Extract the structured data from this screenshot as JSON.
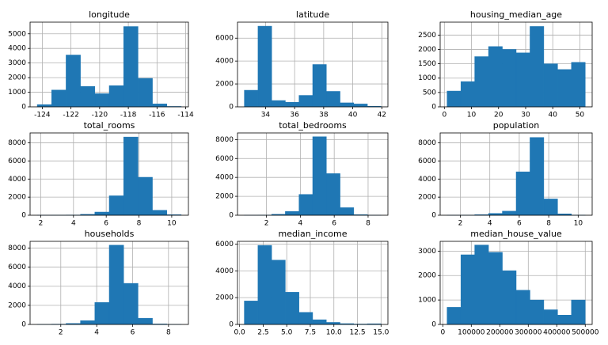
{
  "chart_data": [
    {
      "type": "histogram",
      "title": "longitude",
      "bins": [
        -124.35,
        -123.346,
        -122.342,
        -121.338,
        -120.334,
        -119.33,
        -118.326,
        -117.322,
        -116.318,
        -115.314,
        -114.31
      ],
      "values": [
        150,
        1150,
        3550,
        1400,
        900,
        1450,
        5500,
        1950,
        200,
        30
      ],
      "color": "#1f77b4",
      "xlim": [
        -124.85,
        -113.81
      ],
      "ylim": [
        0,
        5800
      ],
      "xticks": [
        -124,
        -122,
        -120,
        -118,
        -116,
        -114
      ],
      "yticks": [
        0,
        1000,
        2000,
        3000,
        4000,
        5000
      ],
      "grid": true
    },
    {
      "type": "histogram",
      "title": "latitude",
      "bins": [
        32.54,
        33.481,
        34.422,
        35.363,
        36.304,
        37.245,
        38.186,
        39.127,
        40.068,
        41.009,
        41.95
      ],
      "values": [
        1450,
        7050,
        550,
        400,
        1000,
        3700,
        1350,
        350,
        250,
        50
      ],
      "color": "#1f77b4",
      "xlim": [
        32.07,
        42.42
      ],
      "ylim": [
        0,
        7400
      ],
      "xticks": [
        34,
        36,
        38,
        40,
        42
      ],
      "yticks": [
        0,
        2000,
        4000,
        6000
      ],
      "grid": true
    },
    {
      "type": "histogram",
      "title": "housing_median_age",
      "bins": [
        1,
        6.1,
        11.2,
        16.3,
        21.4,
        26.5,
        31.6,
        36.7,
        41.8,
        46.9,
        52
      ],
      "values": [
        550,
        880,
        1750,
        2100,
        2000,
        1880,
        2800,
        1500,
        1300,
        1550
      ],
      "color": "#1f77b4",
      "xlim": [
        -1.55,
        54.55
      ],
      "ylim": [
        0,
        2950
      ],
      "xticks": [
        0,
        10,
        20,
        30,
        40,
        50
      ],
      "yticks": [
        0,
        500,
        1000,
        1500,
        2000,
        2500
      ],
      "grid": true
    },
    {
      "type": "histogram",
      "title": "total_rooms",
      "bins": [
        1.79,
        2.669,
        3.548,
        4.427,
        5.306,
        6.185,
        7.064,
        7.943,
        8.822,
        9.701,
        10.58
      ],
      "values": [
        5,
        10,
        25,
        100,
        350,
        2150,
        8650,
        4200,
        550,
        60
      ],
      "color": "#1f77b4",
      "xlim": [
        1.35,
        11.02
      ],
      "ylim": [
        0,
        9100
      ],
      "xticks": [
        2,
        4,
        6,
        8,
        10
      ],
      "yticks": [
        0,
        2000,
        4000,
        6000,
        8000
      ],
      "grid": true
    },
    {
      "type": "histogram",
      "title": "total_bedrooms",
      "bins": [
        0.69,
        1.498,
        2.306,
        3.114,
        3.922,
        4.73,
        5.538,
        6.346,
        7.154,
        7.962,
        8.77
      ],
      "values": [
        5,
        20,
        100,
        400,
        2200,
        8300,
        4400,
        800,
        60,
        5
      ],
      "color": "#1f77b4",
      "xlim": [
        0.29,
        9.17
      ],
      "ylim": [
        0,
        8700
      ],
      "xticks": [
        2,
        4,
        6,
        8
      ],
      "yticks": [
        0,
        2000,
        4000,
        6000,
        8000
      ],
      "grid": true
    },
    {
      "type": "histogram",
      "title": "population",
      "bins": [
        1.1,
        2.038,
        2.976,
        3.914,
        4.852,
        5.79,
        6.728,
        7.666,
        8.604,
        9.542,
        10.48
      ],
      "values": [
        3,
        10,
        60,
        200,
        450,
        4800,
        8600,
        1800,
        150,
        20
      ],
      "color": "#1f77b4",
      "xlim": [
        0.63,
        10.95
      ],
      "ylim": [
        0,
        9100
      ],
      "xticks": [
        2,
        4,
        6,
        8,
        10
      ],
      "yticks": [
        0,
        2000,
        4000,
        6000,
        8000
      ],
      "grid": true
    },
    {
      "type": "histogram",
      "title": "households",
      "bins": [
        0.69,
        1.492,
        2.294,
        3.096,
        3.898,
        4.7,
        5.502,
        6.304,
        7.106,
        7.908,
        8.71
      ],
      "values": [
        10,
        30,
        100,
        400,
        2300,
        8300,
        4300,
        650,
        50,
        5
      ],
      "color": "#1f77b4",
      "xlim": [
        0.29,
        9.11
      ],
      "ylim": [
        0,
        8700
      ],
      "xticks": [
        2,
        4,
        6,
        8
      ],
      "yticks": [
        0,
        2000,
        4000,
        6000,
        8000
      ],
      "grid": true
    },
    {
      "type": "histogram",
      "title": "median_income",
      "bins": [
        0.5,
        1.95,
        3.4,
        4.85,
        6.3,
        7.75,
        9.2,
        10.65,
        12.1,
        13.55,
        15.0
      ],
      "values": [
        1750,
        5900,
        4800,
        2400,
        900,
        350,
        150,
        60,
        30,
        50
      ],
      "color": "#1f77b4",
      "xlim": [
        -0.22,
        15.73
      ],
      "ylim": [
        0,
        6200
      ],
      "xticks": [
        {
          "value": 0,
          "label": "0.0"
        },
        {
          "value": 2.5,
          "label": "2.5"
        },
        {
          "value": 5,
          "label": "5.0"
        },
        {
          "value": 7.5,
          "label": "7.5"
        },
        {
          "value": 10,
          "label": "10.0"
        },
        {
          "value": 12.5,
          "label": "12.5"
        },
        {
          "value": 15,
          "label": "15.0"
        }
      ],
      "yticks": [
        0,
        2000,
        4000,
        6000
      ],
      "grid": true
    },
    {
      "type": "histogram",
      "title": "median_house_value",
      "bins": [
        14999,
        63499,
        111999,
        160500,
        209000,
        257500,
        306000,
        354500,
        403001,
        451501,
        500001
      ],
      "values": [
        700,
        2850,
        3250,
        2950,
        2200,
        1400,
        1000,
        600,
        380,
        1000
      ],
      "color": "#1f77b4",
      "xlim": [
        -9250,
        524250
      ],
      "ylim": [
        0,
        3400
      ],
      "xticks": [
        0,
        100000,
        200000,
        300000,
        400000,
        500000
      ],
      "yticks": [
        0,
        1000,
        2000,
        3000
      ],
      "grid": true
    }
  ]
}
